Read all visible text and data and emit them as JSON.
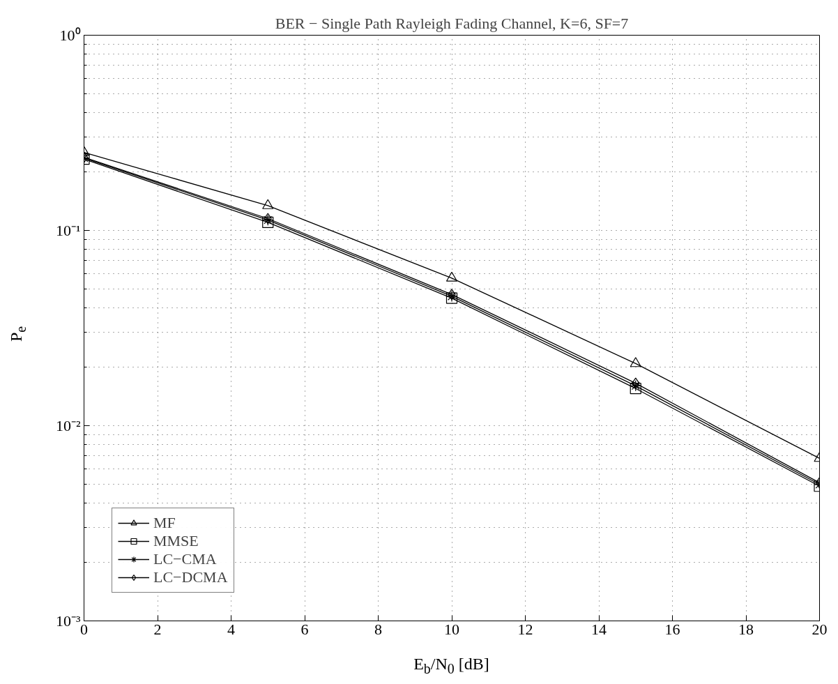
{
  "chart_data": {
    "type": "line",
    "title": "BER − Single Path Rayleigh Fading Channel, K=6, SF=7",
    "xlabel": "E$_{b}$/N$_{0}$ [dB]",
    "ylabel": "P$_{e}$",
    "x": [
      0,
      5,
      10,
      15,
      20
    ],
    "series": [
      {
        "name": "MF",
        "color": "#000000",
        "marker": "triangle",
        "values": [
          0.251,
          0.134,
          0.057,
          0.0208,
          0.0068
        ]
      },
      {
        "name": "MMSE",
        "color": "#000000",
        "marker": "square",
        "values": [
          0.232,
          0.11,
          0.045,
          0.0155,
          0.0049
        ]
      },
      {
        "name": "LC−CMA",
        "color": "#000000",
        "marker": "cross",
        "values": [
          0.235,
          0.113,
          0.046,
          0.016,
          0.005
        ]
      },
      {
        "name": "LC−DCMA",
        "color": "#000000",
        "marker": "diamond",
        "values": [
          0.237,
          0.115,
          0.047,
          0.0165,
          0.0051
        ]
      }
    ],
    "xlim": [
      0,
      20
    ],
    "xticks": [
      0,
      2,
      4,
      6,
      8,
      10,
      12,
      14,
      16,
      18,
      20
    ],
    "ylim": [
      0.001,
      1
    ],
    "yticks": [
      {
        "value": 0.001,
        "label": "10⁻³"
      },
      {
        "value": 0.01,
        "label": "10⁻²"
      },
      {
        "value": 0.1,
        "label": "10⁻¹"
      },
      {
        "value": 1,
        "label": "10⁰"
      }
    ],
    "log": "y",
    "grid": true,
    "legend": "bottom left",
    "line_style": "solid"
  }
}
